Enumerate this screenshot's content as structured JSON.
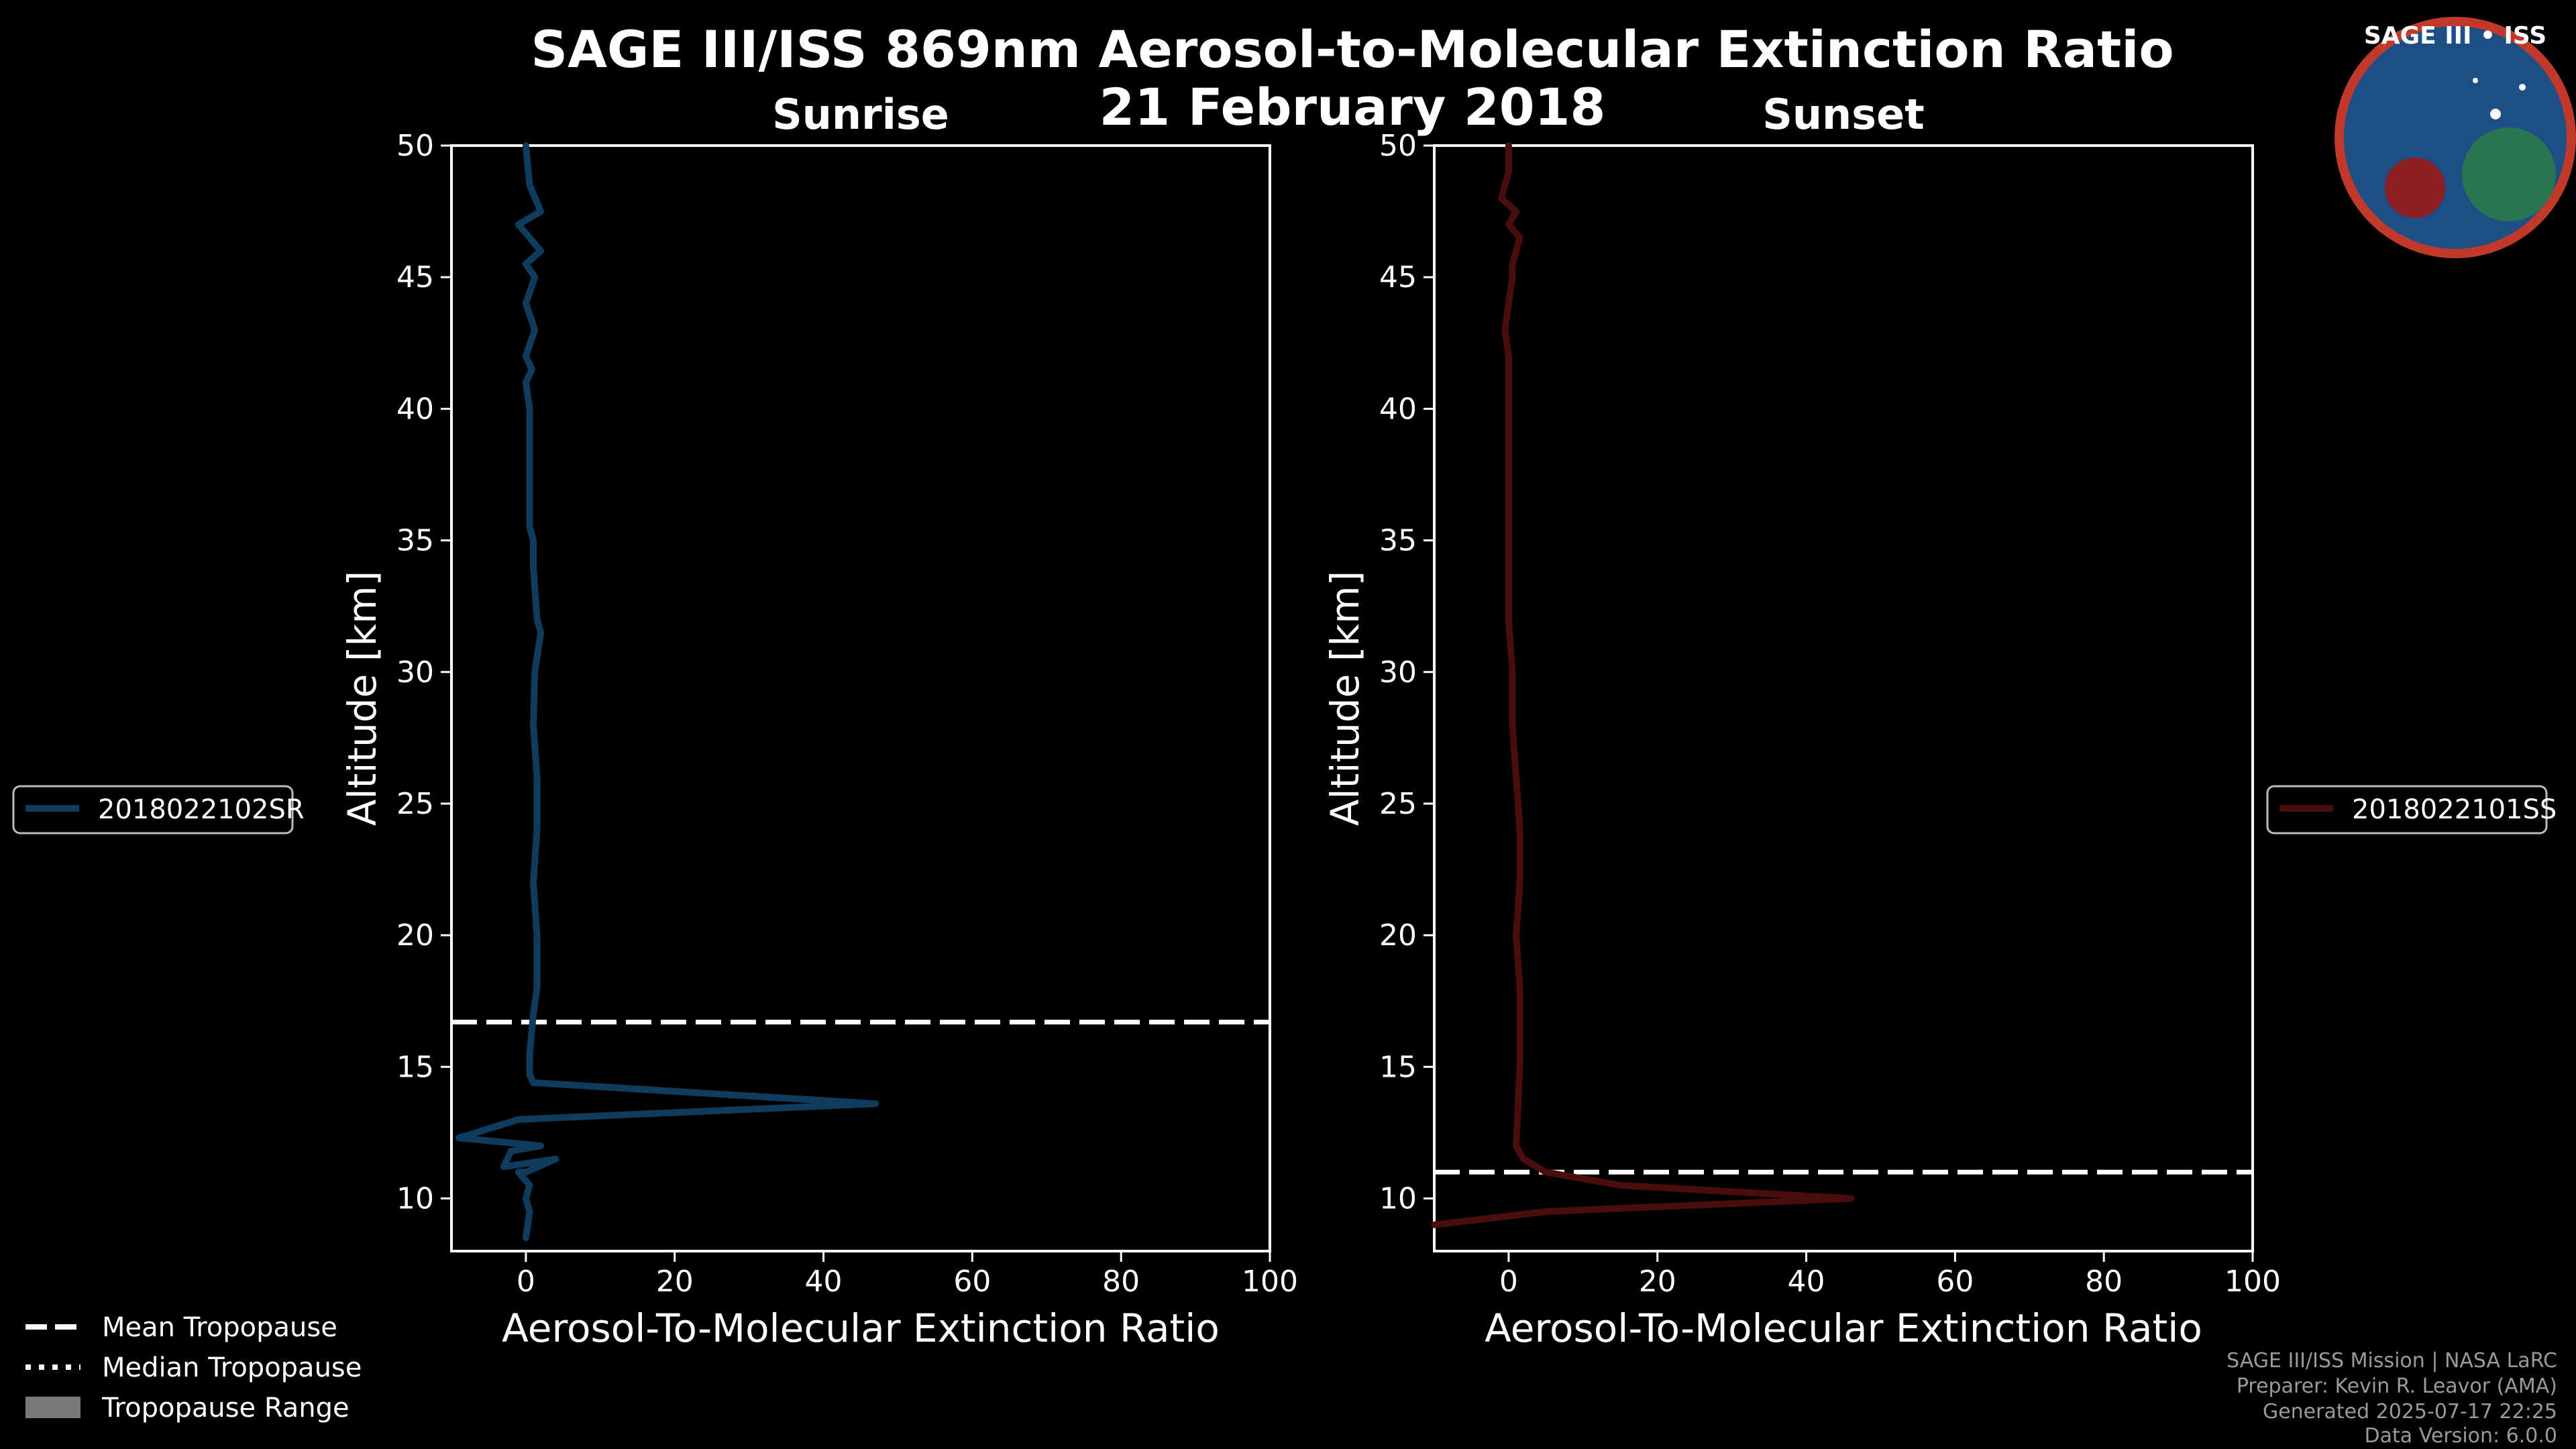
{
  "title_line1": "SAGE III/ISS 869nm Aerosol-to-Molecular Extinction Ratio",
  "title_line2": "21 February 2018",
  "logo": {
    "text": "SAGE III • ISS"
  },
  "footer": {
    "line1": "SAGE III/ISS Mission | NASA LaRC",
    "line2": "Preparer: Kevin R. Leavor (AMA)",
    "line3": "Generated 2025-07-17 22:25",
    "line4": "Data Version: 6.0.0"
  },
  "bottom_legend": {
    "mean": "Mean Tropopause",
    "median": "Median Tropopause",
    "range": "Tropopause Range"
  },
  "colors": {
    "sunrise": "#0f3b5c",
    "sunset": "#4a0d0d",
    "tropopause": "#ffffff",
    "range_fill": "#7a7a7a"
  },
  "chart_data": [
    {
      "type": "line",
      "panel": "sunrise",
      "title": "Sunrise",
      "xlabel": "Aerosol-To-Molecular Extinction Ratio",
      "ylabel": "Altitude [km]",
      "xlim": [
        -10,
        100
      ],
      "ylim": [
        8,
        50
      ],
      "xticks": [
        0,
        20,
        40,
        60,
        80,
        100
      ],
      "yticks": [
        10,
        15,
        20,
        25,
        30,
        35,
        40,
        45,
        50
      ],
      "mean_tropopause_km": 16.7,
      "legend_position": "left",
      "series": [
        {
          "name": "2018022102SR",
          "x": [
            0,
            0.5,
            0,
            0.5,
            -1,
            0,
            4,
            -3,
            -2,
            2,
            -9,
            -1,
            47,
            1,
            0.5,
            0.5,
            1,
            1.5,
            1.5,
            1,
            1.5,
            1.5,
            1,
            1.2,
            2,
            1.5,
            1,
            1,
            0.5,
            0.5,
            0.5,
            0.5,
            0.5,
            0.5,
            0,
            0.8,
            0,
            1.2,
            0,
            1.2,
            0,
            2,
            -1,
            2,
            0.5,
            0
          ],
          "y": [
            8.5,
            9.5,
            10,
            10.5,
            11,
            11,
            11.5,
            11.2,
            11.8,
            12,
            12.3,
            13,
            13.6,
            14.4,
            14.7,
            15.5,
            17,
            18,
            20,
            22,
            24,
            26,
            28,
            30,
            31.5,
            32,
            34,
            35,
            35.5,
            36,
            37,
            38,
            39,
            40,
            41,
            41.5,
            42,
            43,
            44,
            45,
            45.5,
            46,
            47,
            47.5,
            48.5,
            50
          ]
        }
      ]
    },
    {
      "type": "line",
      "panel": "sunset",
      "title": "Sunset",
      "xlabel": "Aerosol-To-Molecular Extinction Ratio",
      "ylabel": "Altitude [km]",
      "xlim": [
        -10,
        100
      ],
      "ylim": [
        8,
        50
      ],
      "xticks": [
        0,
        20,
        40,
        60,
        80,
        100
      ],
      "yticks": [
        10,
        15,
        20,
        25,
        30,
        35,
        40,
        45,
        50
      ],
      "mean_tropopause_km": 11.0,
      "legend_position": "right",
      "series": [
        {
          "name": "2018022101SS",
          "x": [
            -10,
            5,
            46,
            15,
            5,
            2,
            1,
            1.5,
            1.5,
            1,
            1.5,
            1.5,
            1,
            0.5,
            0.5,
            0,
            0,
            0,
            0,
            0,
            0,
            -0.5,
            0,
            0.5,
            0.5,
            1.5,
            0,
            1,
            -1,
            0,
            0
          ],
          "y": [
            9,
            9.5,
            10,
            10.5,
            11,
            11.5,
            12,
            15,
            18,
            20,
            22,
            24,
            26,
            28,
            30,
            32,
            34,
            36,
            38,
            40,
            42,
            43,
            44,
            45,
            45.5,
            46.5,
            47,
            47.5,
            48,
            49,
            50
          ]
        }
      ]
    }
  ]
}
